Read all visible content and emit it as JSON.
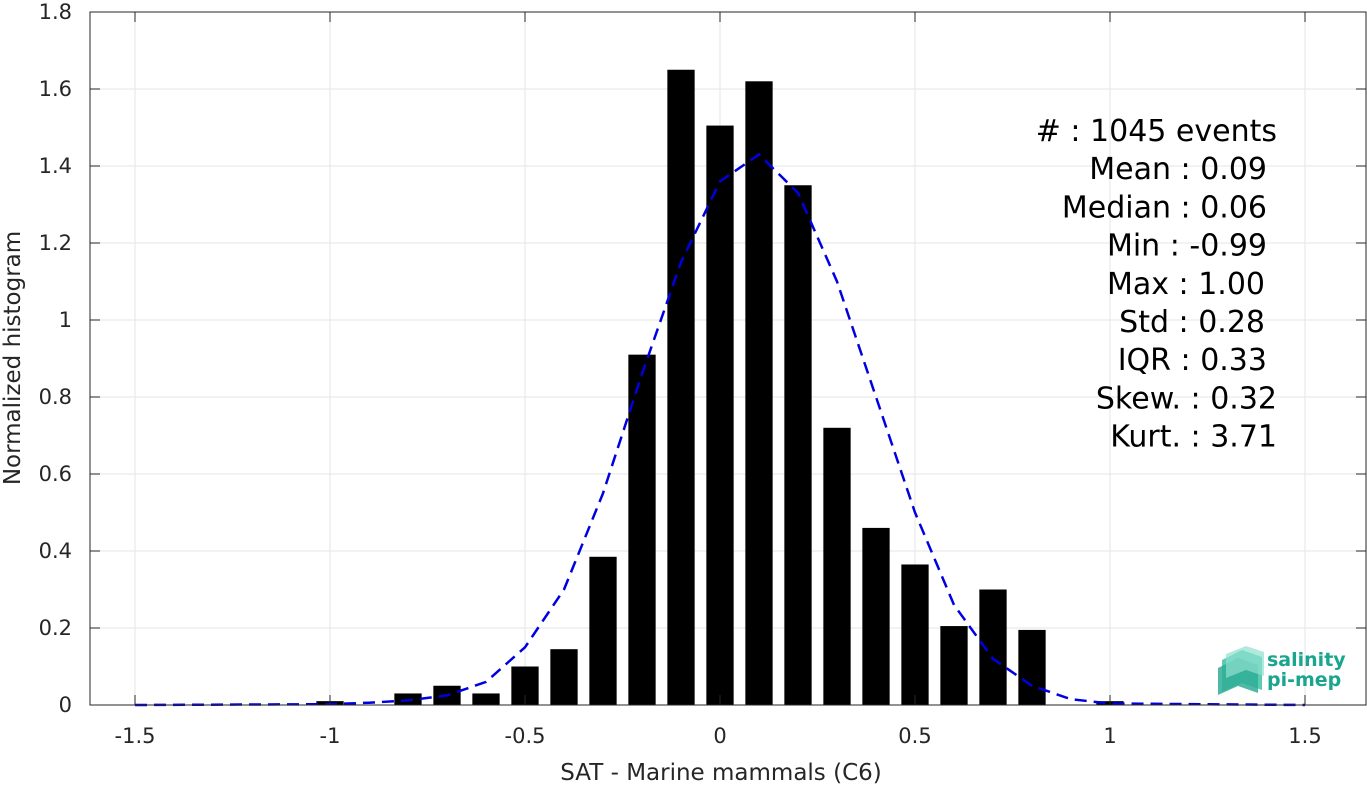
{
  "chart_data": {
    "type": "bar",
    "xlabel": "SAT - Marine mammals (C6)",
    "ylabel": "Normalized histogram",
    "xlim": [
      -1.5,
      1.5
    ],
    "ylim": [
      0,
      1.8
    ],
    "x_ticks": [
      -1.5,
      -1,
      -0.5,
      0,
      0.5,
      1,
      1.5
    ],
    "y_ticks": [
      0,
      0.2,
      0.4,
      0.6,
      0.8,
      1,
      1.2,
      1.4,
      1.6,
      1.8
    ],
    "grid": true,
    "bar_color": "#000000",
    "bin_width": 0.1,
    "bins": [
      {
        "x": -1.0,
        "y": 0.01
      },
      {
        "x": -0.8,
        "y": 0.03
      },
      {
        "x": -0.7,
        "y": 0.05
      },
      {
        "x": -0.6,
        "y": 0.03
      },
      {
        "x": -0.5,
        "y": 0.1
      },
      {
        "x": -0.4,
        "y": 0.145
      },
      {
        "x": -0.3,
        "y": 0.385
      },
      {
        "x": -0.2,
        "y": 0.91
      },
      {
        "x": -0.1,
        "y": 1.65
      },
      {
        "x": 0.0,
        "y": 1.505
      },
      {
        "x": 0.1,
        "y": 1.62
      },
      {
        "x": 0.2,
        "y": 1.35
      },
      {
        "x": 0.3,
        "y": 0.72
      },
      {
        "x": 0.4,
        "y": 0.46
      },
      {
        "x": 0.5,
        "y": 0.365
      },
      {
        "x": 0.6,
        "y": 0.205
      },
      {
        "x": 0.7,
        "y": 0.3
      },
      {
        "x": 0.8,
        "y": 0.195
      },
      {
        "x": 1.0,
        "y": 0.01
      }
    ],
    "fit_curve": {
      "style": "dashed",
      "color": "#0000e0",
      "points": [
        [
          -1.5,
          0.0
        ],
        [
          -1.0,
          0.002
        ],
        [
          -0.9,
          0.006
        ],
        [
          -0.8,
          0.012
        ],
        [
          -0.7,
          0.025
        ],
        [
          -0.6,
          0.06
        ],
        [
          -0.5,
          0.15
        ],
        [
          -0.4,
          0.3
        ],
        [
          -0.3,
          0.55
        ],
        [
          -0.2,
          0.86
        ],
        [
          -0.1,
          1.15
        ],
        [
          0.0,
          1.36
        ],
        [
          0.1,
          1.43
        ],
        [
          0.2,
          1.33
        ],
        [
          0.3,
          1.1
        ],
        [
          0.4,
          0.8
        ],
        [
          0.5,
          0.5
        ],
        [
          0.6,
          0.26
        ],
        [
          0.7,
          0.12
        ],
        [
          0.8,
          0.05
        ],
        [
          0.9,
          0.015
        ],
        [
          1.0,
          0.004
        ],
        [
          1.5,
          0.0
        ]
      ]
    }
  },
  "stats": [
    "#  : 1045 events",
    "Mean : 0.09",
    "Median : 0.06",
    "Min : -0.99",
    "Max : 1.00",
    "Std : 0.28",
    "IQR : 0.33",
    "Skew. : 0.32",
    "Kurt. : 3.71"
  ],
  "logo": {
    "line1": "salinity",
    "line2": "pi-mep"
  }
}
